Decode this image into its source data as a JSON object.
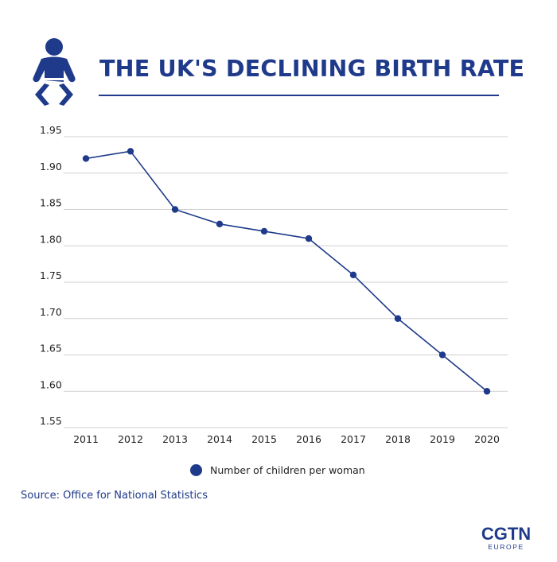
{
  "header": {
    "title": "THE UK'S DECLINING BIRTH RATE",
    "icon": "baby-icon"
  },
  "colors": {
    "brand": "#1f3a8a",
    "line": "#1f3a8a",
    "grid": "#d0d0d0"
  },
  "chart_data": {
    "type": "line",
    "title": "THE UK'S DECLINING BIRTH RATE",
    "xlabel": "",
    "ylabel": "",
    "categories": [
      "2011",
      "2012",
      "2013",
      "2014",
      "2015",
      "2016",
      "2017",
      "2018",
      "2019",
      "2020"
    ],
    "series": [
      {
        "name": "Number of children per woman",
        "values": [
          1.92,
          1.93,
          1.85,
          1.83,
          1.82,
          1.81,
          1.76,
          1.7,
          1.65,
          1.6
        ]
      }
    ],
    "ylim": [
      1.55,
      1.95
    ],
    "yticks": [
      "1.95",
      "1.90",
      "1.85",
      "1.80",
      "1.75",
      "1.70",
      "1.65",
      "1.60",
      "1.55"
    ],
    "grid": true,
    "legend_position": "bottom-center"
  },
  "legend": {
    "label": "Number of children per woman"
  },
  "source": "Source: Office for National Statistics",
  "logo": {
    "name": "CGTN",
    "sub": "EUROPE"
  }
}
